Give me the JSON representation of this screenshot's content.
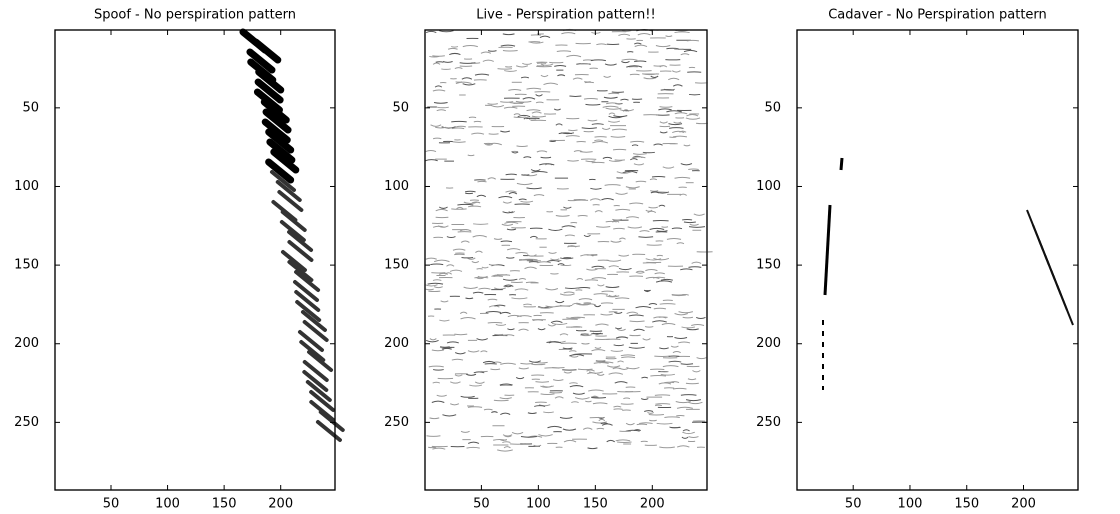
{
  "chart_data": [
    {
      "type": "image",
      "title": "Spoof - No perspiration pattern",
      "xlim": [
        0.5,
        248
      ],
      "ylim": [
        0.5,
        293
      ],
      "xticks": [
        50,
        100,
        150,
        200
      ],
      "yticks": [
        50,
        100,
        150,
        200,
        250
      ],
      "y_reversed": true
    },
    {
      "type": "image",
      "title": "Live - Perspiration pattern!!",
      "xlim": [
        0.5,
        248
      ],
      "ylim": [
        0.5,
        293
      ],
      "xticks": [
        50,
        100,
        150,
        200
      ],
      "yticks": [
        50,
        100,
        150,
        200,
        250
      ],
      "y_reversed": true
    },
    {
      "type": "image",
      "title": "Cadaver - No Perspiration pattern",
      "xlim": [
        0.5,
        248
      ],
      "ylim": [
        0.5,
        293
      ],
      "xticks": [
        50,
        100,
        150,
        200
      ],
      "yticks": [
        50,
        100,
        150,
        200,
        250
      ],
      "y_reversed": true
    }
  ]
}
